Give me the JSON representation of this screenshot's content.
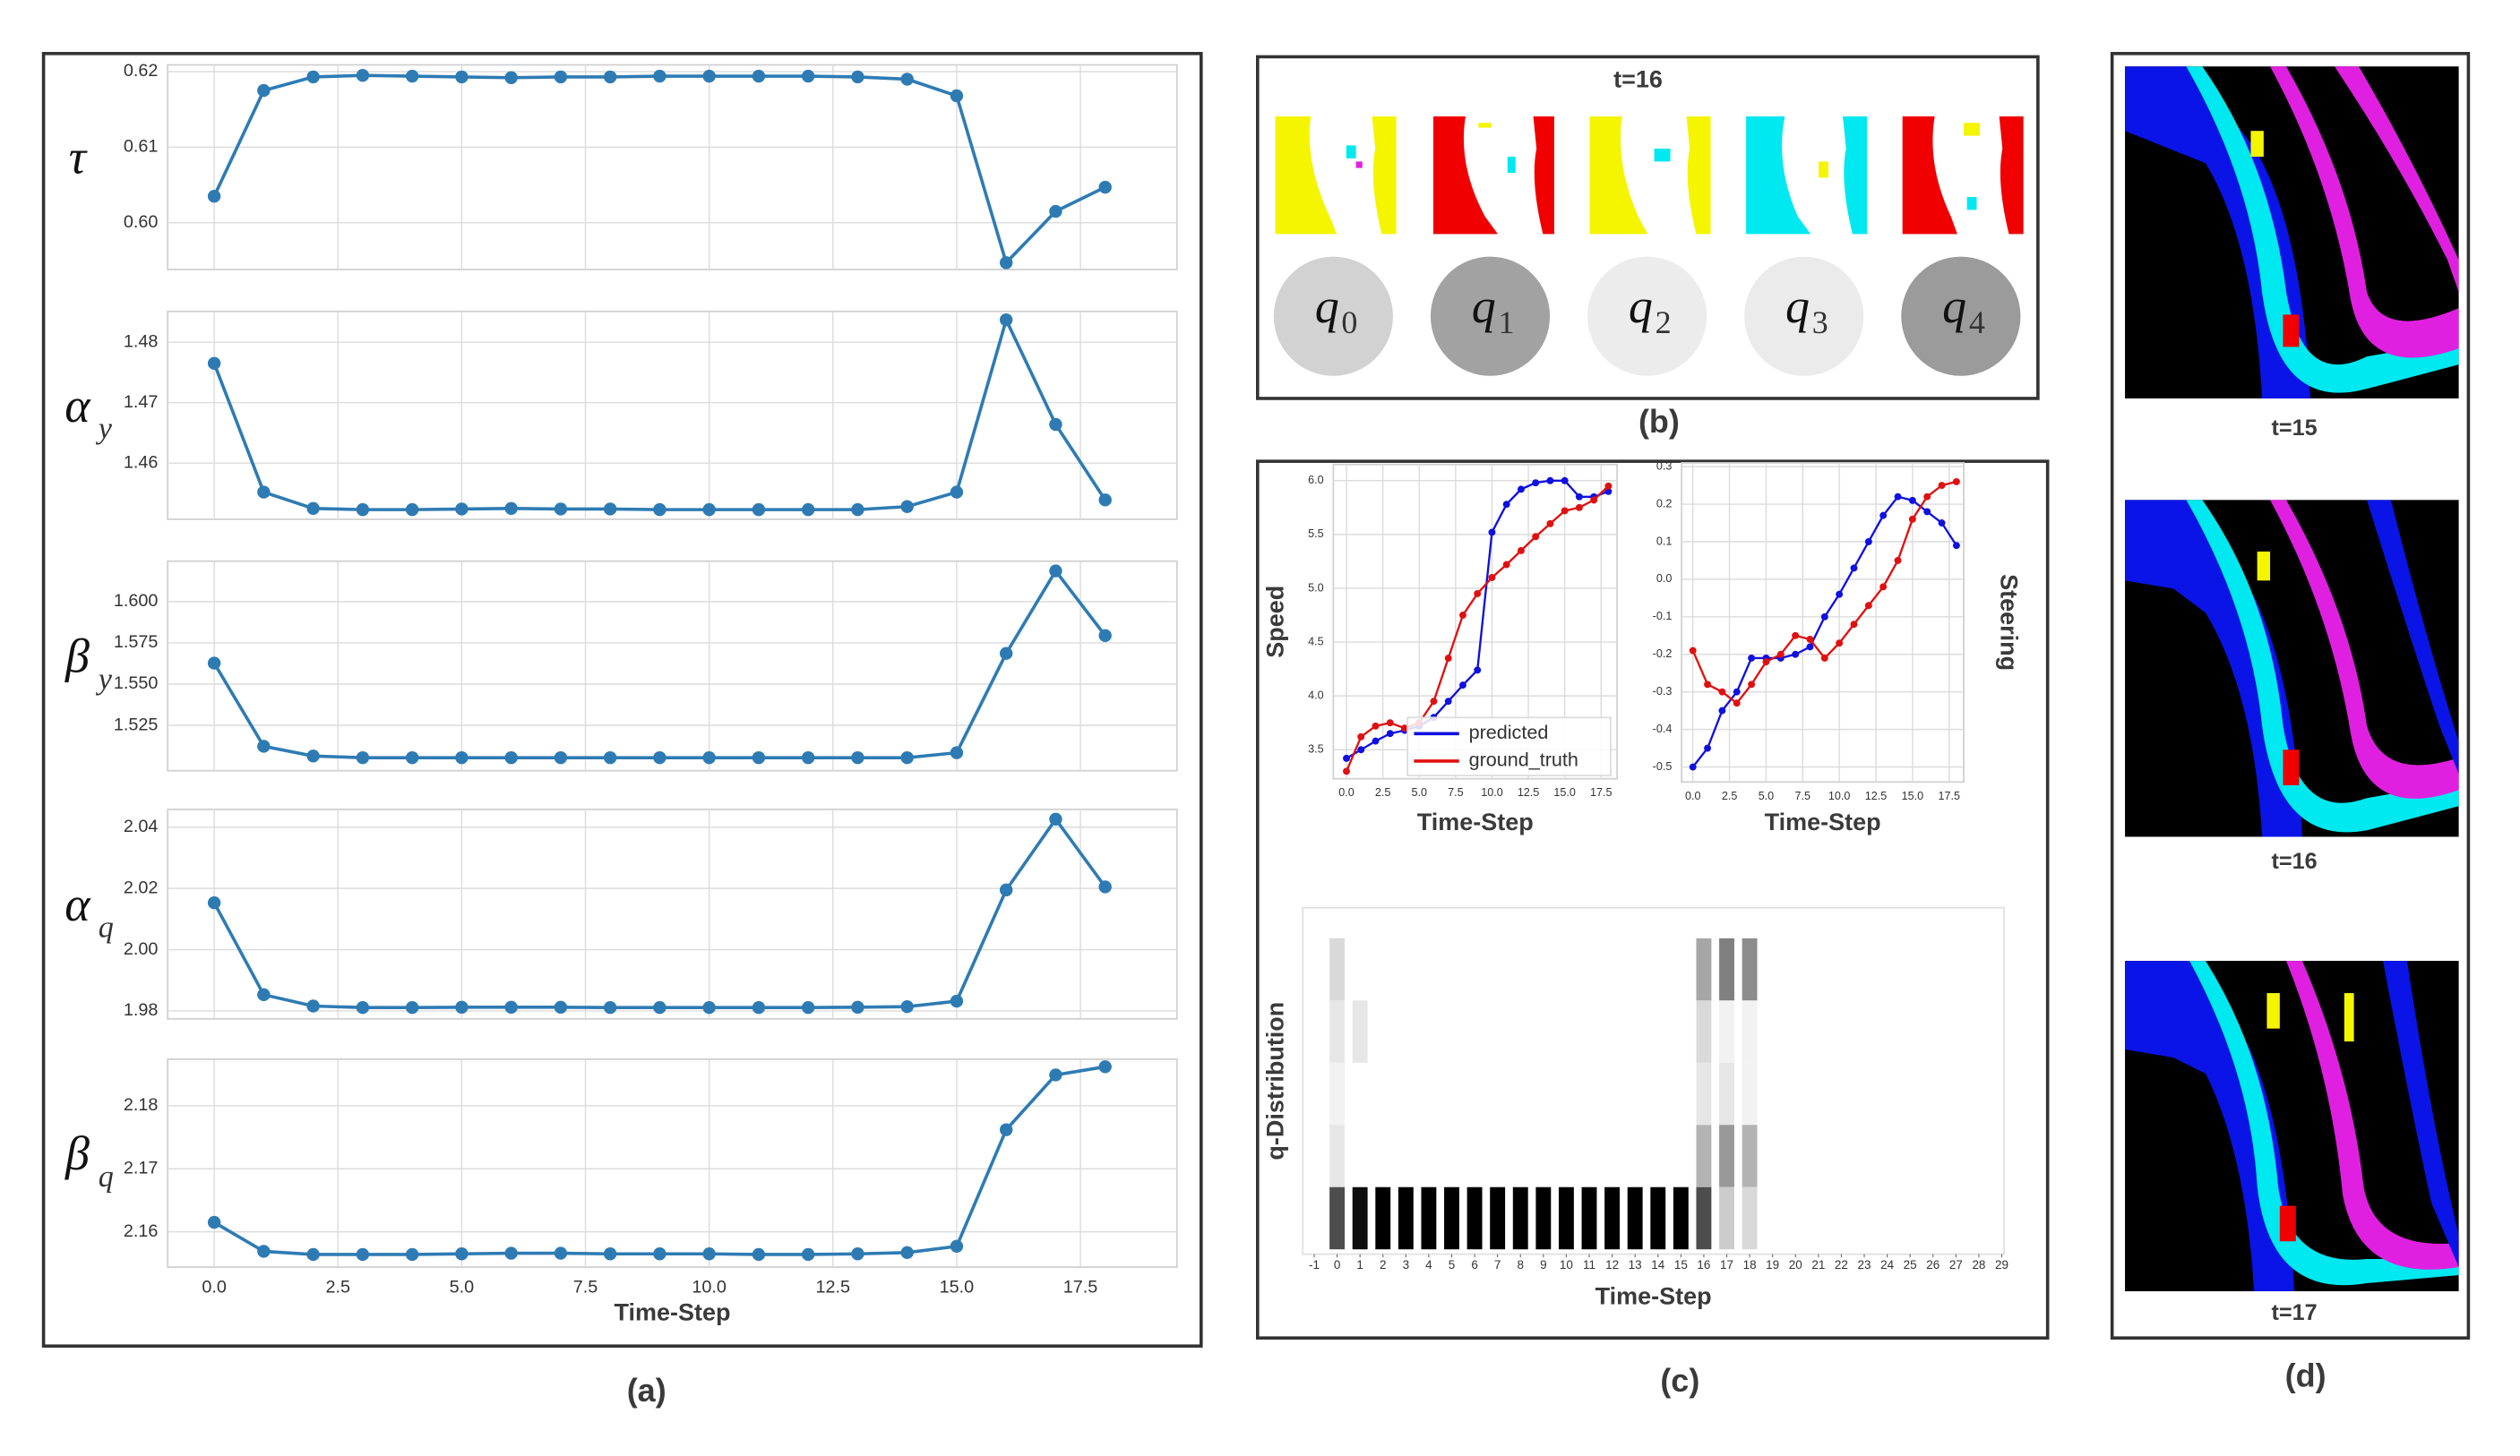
{
  "figure": {
    "panel_labels": [
      "(a)",
      "(b)",
      "(c)",
      "(d)"
    ],
    "b_title": "t=16",
    "q_nodes": [
      {
        "base": "q",
        "sub": "0",
        "color": "#d2d2d2"
      },
      {
        "base": "q",
        "sub": "1",
        "color": "#a2a2a2"
      },
      {
        "base": "q",
        "sub": "2",
        "color": "#ececec"
      },
      {
        "base": "q",
        "sub": "3",
        "color": "#ebebeb"
      },
      {
        "base": "q",
        "sub": "4",
        "color": "#9b9b9b"
      }
    ],
    "d_labels": [
      "t=15",
      "t=16",
      "t=17"
    ]
  },
  "chart_data": [
    {
      "type": "line",
      "ylabel": "τ",
      "grid": true,
      "xtick_labels": false,
      "x": [
        0,
        1,
        2,
        3,
        4,
        5,
        6,
        7,
        8,
        9,
        10,
        11,
        12,
        13,
        14,
        15,
        16,
        17,
        18
      ],
      "xlim": [
        -0.94,
        19.45
      ],
      "xticks": [
        {
          "value": 0,
          "label": "0.0"
        },
        2.5,
        {
          "value": 5,
          "label": "5.0"
        },
        7.5,
        {
          "value": 10,
          "label": "10.0"
        },
        12.5,
        {
          "value": 15,
          "label": "15.0"
        },
        17.5
      ],
      "ylim": [
        0.5938,
        0.6209
      ],
      "yticks": [
        {
          "value": 0.6,
          "label": "0.60"
        },
        0.61,
        0.62
      ],
      "series": [
        {
          "name": "τ",
          "color": "#2e7bb4",
          "values": [
            0.6035,
            0.6175,
            0.6193,
            0.6195,
            0.6194,
            0.6193,
            0.6192,
            0.6193,
            0.6193,
            0.6194,
            0.6194,
            0.6194,
            0.6194,
            0.6193,
            0.619,
            0.6168,
            0.5947,
            0.6015,
            0.6047
          ]
        }
      ]
    },
    {
      "type": "line",
      "ylabel": "α",
      "ylabel_sub": "y",
      "grid": true,
      "xtick_labels": false,
      "x": [
        0,
        1,
        2,
        3,
        4,
        5,
        6,
        7,
        8,
        9,
        10,
        11,
        12,
        13,
        14,
        15,
        16,
        17,
        18
      ],
      "xlim": [
        -0.94,
        19.45
      ],
      "xticks": [
        {
          "value": 0,
          "label": "0.0"
        },
        2.5,
        {
          "value": 5,
          "label": "5.0"
        },
        7.5,
        {
          "value": 10,
          "label": "10.0"
        },
        12.5,
        {
          "value": 15,
          "label": "15.0"
        },
        17.5
      ],
      "ylim": [
        1.4507,
        1.4851
      ],
      "yticks": [
        1.46,
        1.47,
        1.48
      ],
      "series": [
        {
          "name": "α_y",
          "color": "#2e7bb4",
          "values": [
            1.4765,
            1.4552,
            1.4525,
            1.4523,
            1.4523,
            1.4524,
            1.4525,
            1.4524,
            1.4524,
            1.4523,
            1.4523,
            1.4523,
            1.4523,
            1.4523,
            1.4528,
            1.4552,
            1.4837,
            1.4664,
            1.4539
          ]
        }
      ]
    },
    {
      "type": "line",
      "ylabel": "β",
      "ylabel_sub": "y",
      "grid": true,
      "xtick_labels": false,
      "x": [
        0,
        1,
        2,
        3,
        4,
        5,
        6,
        7,
        8,
        9,
        10,
        11,
        12,
        13,
        14,
        15,
        16,
        17,
        18
      ],
      "xlim": [
        -0.94,
        19.45
      ],
      "xticks": [
        {
          "value": 0,
          "label": "0.0"
        },
        2.5,
        {
          "value": 5,
          "label": "5.0"
        },
        7.5,
        {
          "value": 10,
          "label": "10.0"
        },
        12.5,
        {
          "value": 15,
          "label": "15.0"
        },
        17.5
      ],
      "ylim": [
        1.4975,
        1.6245
      ],
      "yticks": [
        1.525,
        {
          "value": 1.55,
          "label": "1.550"
        },
        1.575,
        {
          "value": 1.6,
          "label": "1.600"
        }
      ],
      "series": [
        {
          "name": "β_y",
          "color": "#2e7bb4",
          "values": [
            1.5627,
            1.5123,
            1.5064,
            1.5054,
            1.5054,
            1.5054,
            1.5054,
            1.5054,
            1.5054,
            1.5054,
            1.5054,
            1.5054,
            1.5054,
            1.5054,
            1.5054,
            1.5084,
            1.5686,
            1.6186,
            1.5794
          ]
        }
      ]
    },
    {
      "type": "line",
      "ylabel": "α",
      "ylabel_sub": "q",
      "grid": true,
      "xtick_labels": false,
      "x": [
        0,
        1,
        2,
        3,
        4,
        5,
        6,
        7,
        8,
        9,
        10,
        11,
        12,
        13,
        14,
        15,
        16,
        17,
        18
      ],
      "xlim": [
        -0.94,
        19.45
      ],
      "xticks": [
        {
          "value": 0,
          "label": "0.0"
        },
        2.5,
        {
          "value": 5,
          "label": "5.0"
        },
        7.5,
        {
          "value": 10,
          "label": "10.0"
        },
        12.5,
        {
          "value": 15,
          "label": "15.0"
        },
        17.5
      ],
      "ylim": [
        1.9774,
        2.0458
      ],
      "yticks": [
        1.98,
        {
          "value": 2,
          "label": "2.00"
        },
        2.02,
        2.04
      ],
      "series": [
        {
          "name": "α_q",
          "color": "#2e7bb4",
          "values": [
            2.0153,
            1.9853,
            1.9816,
            1.9811,
            1.9811,
            1.9812,
            1.9812,
            1.9812,
            1.9811,
            1.9811,
            1.9811,
            1.9811,
            1.9811,
            1.9812,
            1.9814,
            1.9832,
            2.0195,
            2.0426,
            2.0205
          ]
        }
      ]
    },
    {
      "type": "line",
      "ylabel": "β",
      "ylabel_sub": "q",
      "xlabel": "Time-Step",
      "grid": true,
      "xtick_labels": true,
      "x": [
        0,
        1,
        2,
        3,
        4,
        5,
        6,
        7,
        8,
        9,
        10,
        11,
        12,
        13,
        14,
        15,
        16,
        17,
        18
      ],
      "xlim": [
        -0.94,
        19.45
      ],
      "xticks": [
        {
          "value": 0,
          "label": "0.0"
        },
        2.5,
        {
          "value": 5,
          "label": "5.0"
        },
        7.5,
        {
          "value": 10,
          "label": "10.0"
        },
        12.5,
        {
          "value": 15,
          "label": "15.0"
        },
        17.5
      ],
      "ylim": [
        2.1544,
        2.1874
      ],
      "yticks": [
        2.16,
        2.17,
        2.18
      ],
      "series": [
        {
          "name": "β_q",
          "color": "#2e7bb4",
          "values": [
            2.1615,
            2.1569,
            2.1564,
            2.1564,
            2.1564,
            2.1565,
            2.1566,
            2.1566,
            2.1565,
            2.1565,
            2.1565,
            2.1564,
            2.1564,
            2.1565,
            2.1567,
            2.1577,
            2.1762,
            2.1849,
            2.1862
          ]
        }
      ]
    },
    {
      "type": "line",
      "ylabel": "Speed",
      "xlabel": "Time-Step",
      "grid": true,
      "xtick_labels": true,
      "legend": "lower right",
      "x": [
        0,
        1,
        2,
        3,
        4,
        5,
        6,
        7,
        8,
        9,
        10,
        11,
        12,
        13,
        14,
        15,
        16,
        17,
        18
      ],
      "xlim": [
        -0.9,
        18.6
      ],
      "xticks": [
        {
          "value": 0,
          "label": "0.0"
        },
        2.5,
        {
          "value": 5,
          "label": "5.0"
        },
        7.5,
        {
          "value": 10,
          "label": "10.0"
        },
        12.5,
        {
          "value": 15,
          "label": "15.0"
        },
        17.5
      ],
      "ylim": [
        3.23,
        6.15
      ],
      "yticks": [
        3.5,
        {
          "value": 4,
          "label": "4.0"
        },
        4.5,
        {
          "value": 5,
          "label": "5.0"
        },
        5.5,
        {
          "value": 6,
          "label": "6.0"
        }
      ],
      "series": [
        {
          "name": "predicted",
          "color": "#1010e0",
          "values": [
            3.42,
            3.5,
            3.58,
            3.65,
            3.68,
            3.72,
            3.8,
            3.95,
            4.1,
            4.24,
            5.52,
            5.78,
            5.92,
            5.98,
            6.0,
            6.0,
            5.85,
            5.85,
            5.9
          ]
        },
        {
          "name": "ground_truth",
          "color": "#e01010",
          "values": [
            3.3,
            3.62,
            3.72,
            3.75,
            3.7,
            3.75,
            3.95,
            4.35,
            4.75,
            4.95,
            5.1,
            5.22,
            5.35,
            5.48,
            5.6,
            5.72,
            5.75,
            5.82,
            5.95
          ]
        }
      ]
    },
    {
      "type": "line",
      "ylabel": "Steering",
      "xlabel": "Time-Step",
      "grid": true,
      "xtick_labels": true,
      "x": [
        0,
        1,
        2,
        3,
        4,
        5,
        6,
        7,
        8,
        9,
        10,
        11,
        12,
        13,
        14,
        15,
        16,
        17,
        18
      ],
      "xlim": [
        -0.77,
        18.5
      ],
      "xticks": [
        {
          "value": 0,
          "label": "0.0"
        },
        2.5,
        {
          "value": 5,
          "label": "5.0"
        },
        7.5,
        {
          "value": 10,
          "label": "10.0"
        },
        12.5,
        {
          "value": 15,
          "label": "15.0"
        },
        17.5
      ],
      "ylim": [
        -0.54,
        0.31
      ],
      "yticks": [
        -0.5,
        -0.4,
        -0.3,
        -0.2,
        -0.1,
        {
          "value": 0,
          "label": "0.0"
        },
        0.1,
        0.2,
        0.3
      ],
      "series": [
        {
          "name": "predicted",
          "color": "#1010e0",
          "values": [
            -0.5,
            -0.45,
            -0.35,
            -0.3,
            -0.21,
            -0.21,
            -0.21,
            -0.2,
            -0.18,
            -0.1,
            -0.04,
            0.03,
            0.1,
            0.17,
            0.22,
            0.21,
            0.18,
            0.15,
            0.09
          ]
        },
        {
          "name": "ground_truth",
          "color": "#e01010",
          "values": [
            -0.19,
            -0.28,
            -0.3,
            -0.33,
            -0.28,
            -0.22,
            -0.2,
            -0.15,
            -0.16,
            -0.21,
            -0.17,
            -0.12,
            -0.07,
            -0.02,
            0.05,
            0.16,
            0.22,
            0.25,
            0.26
          ]
        }
      ]
    },
    {
      "type": "heatmap",
      "ylabel": "q-Distribution",
      "xlabel": "Time-Step",
      "x": [
        0,
        1,
        2,
        3,
        4,
        5,
        6,
        7,
        8,
        9,
        10,
        11,
        12,
        13,
        14,
        15,
        16,
        17,
        18
      ],
      "xlim": [
        -1.5,
        29.1
      ],
      "xticks": [
        -1,
        0,
        1,
        2,
        3,
        4,
        5,
        6,
        7,
        8,
        9,
        10,
        11,
        12,
        13,
        14,
        15,
        16,
        17,
        18,
        19,
        20,
        21,
        22,
        23,
        24,
        25,
        26,
        27,
        28,
        29
      ],
      "z": [
        [
          0.15,
          0,
          0,
          0,
          0,
          0,
          0,
          0,
          0,
          0,
          0,
          0,
          0,
          0,
          0,
          0,
          0.35,
          0.5,
          0.45
        ],
        [
          0.1,
          0.1,
          0,
          0,
          0,
          0,
          0,
          0,
          0,
          0,
          0,
          0,
          0,
          0,
          0,
          0,
          0.15,
          0.05,
          0.05
        ],
        [
          0.05,
          0,
          0,
          0,
          0,
          0,
          0,
          0,
          0,
          0,
          0,
          0,
          0,
          0,
          0,
          0,
          0.1,
          0.1,
          0.05
        ],
        [
          0.1,
          0,
          0,
          0,
          0,
          0,
          0,
          0,
          0,
          0,
          0,
          0,
          0,
          0,
          0,
          0,
          0.3,
          0.4,
          0.3
        ],
        [
          0.7,
          0.95,
          1,
          1,
          1,
          1,
          1,
          1,
          1,
          1,
          1,
          1,
          1,
          1,
          1,
          1,
          0.7,
          0.2,
          0.15
        ]
      ]
    }
  ]
}
